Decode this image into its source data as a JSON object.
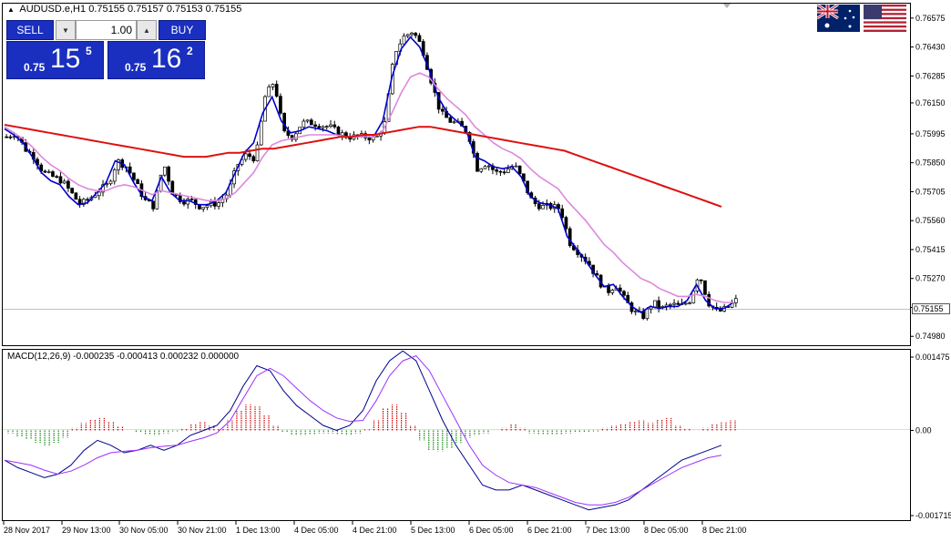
{
  "header": {
    "symbol": "AUDUSD.e,H1",
    "ohlc": "0.75155 0.75157 0.75153 0.75155"
  },
  "trade_panel": {
    "sell_label": "SELL",
    "buy_label": "BUY",
    "lot_value": "1.00",
    "bid_prefix": "0.75",
    "bid_big": "15",
    "bid_sup": "5",
    "ask_prefix": "0.75",
    "ask_big": "16",
    "ask_sup": "2"
  },
  "flags": [
    "australia-flag",
    "usa-flag"
  ],
  "macd": {
    "label": "MACD(12,26,9) -0.000235 -0.000413 0.000232 0.000000",
    "y_ticks": [
      "0.001475",
      "0.00",
      "-0.001715"
    ]
  },
  "colors": {
    "up_candle": "#000000",
    "ema_fast": "#0000cc",
    "ema_mid": "#dd88dd",
    "ema_slow": "#dd1111",
    "hist_up": "#cc0000",
    "hist_down": "#118811",
    "macd_line": "#00008b",
    "signal_line": "#9b30ff"
  },
  "chart_data": [
    {
      "type": "candlestick",
      "title": "AUDUSD.e,H1",
      "current_price": "0.75155",
      "yticks": [
        "0.76575",
        "0.76430",
        "0.76285",
        "0.76150",
        "0.75995",
        "0.75850",
        "0.75705",
        "0.75560",
        "0.75415",
        "0.75270",
        "0.75125",
        "0.74980"
      ],
      "ylim": [
        0.7494,
        0.7662
      ],
      "xticks": [
        "28 Nov 2017",
        "29 Nov 13:00",
        "30 Nov 05:00",
        "30 Nov 21:00",
        "1 Dec 13:00",
        "4 Dec 05:00",
        "4 Dec 21:00",
        "5 Dec 13:00",
        "6 Dec 05:00",
        "6 Dec 21:00",
        "7 Dec 13:00",
        "8 Dec 05:00",
        "8 Dec 21:00"
      ],
      "close_path": [
        0.7598,
        0.76,
        0.7592,
        0.7588,
        0.758,
        0.7578,
        0.7576,
        0.757,
        0.7564,
        0.7567,
        0.7571,
        0.7574,
        0.7586,
        0.7583,
        0.7575,
        0.7566,
        0.7563,
        0.7585,
        0.757,
        0.7566,
        0.7566,
        0.7563,
        0.7564,
        0.7565,
        0.757,
        0.7584,
        0.7589,
        0.7587,
        0.7618,
        0.7626,
        0.76,
        0.7598,
        0.7605,
        0.7605,
        0.7604,
        0.7603,
        0.76,
        0.7598,
        0.7598,
        0.7598,
        0.7597,
        0.7605,
        0.764,
        0.7648,
        0.7651,
        0.7643,
        0.7626,
        0.761,
        0.7606,
        0.7604,
        0.76,
        0.7582,
        0.7585,
        0.758,
        0.7581,
        0.7584,
        0.7575,
        0.7565,
        0.7563,
        0.7563,
        0.7562,
        0.7545,
        0.754,
        0.7535,
        0.7527,
        0.752,
        0.7524,
        0.7516,
        0.751,
        0.7508,
        0.7515,
        0.7512,
        0.7514,
        0.7513,
        0.7516,
        0.753,
        0.7515,
        0.751,
        0.7512,
        0.7516
      ],
      "series": [
        {
          "name": "",
          "color": "#0000cc",
          "values": [
            0.7602,
            0.7599,
            0.7595,
            0.7588,
            0.758,
            0.7576,
            0.7574,
            0.7568,
            0.7564,
            0.7565,
            0.757,
            0.7575,
            0.7586,
            0.7584,
            0.7575,
            0.7568,
            0.7566,
            0.7578,
            0.757,
            0.7566,
            0.7566,
            0.7564,
            0.7564,
            0.7566,
            0.757,
            0.758,
            0.759,
            0.7595,
            0.761,
            0.7618,
            0.7606,
            0.76,
            0.7601,
            0.7603,
            0.7602,
            0.7601,
            0.7599,
            0.7598,
            0.7598,
            0.7598,
            0.7598,
            0.7606,
            0.7628,
            0.7642,
            0.7648,
            0.7643,
            0.7632,
            0.7618,
            0.761,
            0.7606,
            0.7602,
            0.7588,
            0.7586,
            0.7583,
            0.7582,
            0.7583,
            0.7578,
            0.7568,
            0.7565,
            0.7564,
            0.7562,
            0.7548,
            0.7542,
            0.7536,
            0.7529,
            0.7523,
            0.7524,
            0.7518,
            0.7513,
            0.751,
            0.7513,
            0.7512,
            0.7513,
            0.7513,
            0.7516,
            0.7524,
            0.7516,
            0.7512,
            0.7512,
            0.7515
          ]
        },
        {
          "name": "",
          "color": "#dd88dd",
          "values": [
            0.7603,
            0.76,
            0.7597,
            0.7593,
            0.7588,
            0.7584,
            0.7581,
            0.7577,
            0.7574,
            0.7572,
            0.7571,
            0.7571,
            0.7573,
            0.7574,
            0.7573,
            0.7571,
            0.7569,
            0.7571,
            0.757,
            0.7569,
            0.7568,
            0.7567,
            0.7566,
            0.7566,
            0.7567,
            0.757,
            0.7575,
            0.758,
            0.7588,
            0.7594,
            0.7596,
            0.7597,
            0.7598,
            0.7599,
            0.7599,
            0.7599,
            0.7599,
            0.7598,
            0.7598,
            0.7598,
            0.7598,
            0.7601,
            0.761,
            0.762,
            0.7628,
            0.763,
            0.7628,
            0.7622,
            0.7617,
            0.7613,
            0.7609,
            0.7603,
            0.7599,
            0.7595,
            0.7592,
            0.759,
            0.7587,
            0.7582,
            0.7578,
            0.7575,
            0.7572,
            0.7566,
            0.7561,
            0.7556,
            0.755,
            0.7544,
            0.754,
            0.7535,
            0.7531,
            0.7527,
            0.7525,
            0.7522,
            0.752,
            0.7518,
            0.7518,
            0.7519,
            0.7518,
            0.7516,
            0.7515,
            0.7515
          ]
        },
        {
          "name": "",
          "color": "#dd1111",
          "values": [
            0.7604,
            0.7603,
            0.7602,
            0.7601,
            0.76,
            0.7599,
            0.7598,
            0.7597,
            0.7596,
            0.7595,
            0.7594,
            0.7593,
            0.7592,
            0.7591,
            0.759,
            0.7589,
            0.7588,
            0.7588,
            0.7588,
            0.7589,
            0.759,
            0.759,
            0.7591,
            0.7592,
            0.7592,
            0.7593,
            0.7594,
            0.7595,
            0.7596,
            0.7597,
            0.7598,
            0.7598,
            0.7599,
            0.7599,
            0.76,
            0.7601,
            0.7602,
            0.7603,
            0.7603,
            0.7602,
            0.7601,
            0.76,
            0.7599,
            0.7598,
            0.7597,
            0.7596,
            0.7595,
            0.7594,
            0.7593,
            0.7592,
            0.7591,
            0.7589,
            0.7587,
            0.7585,
            0.7583,
            0.7581,
            0.7579,
            0.7577,
            0.7575,
            0.7573,
            0.7571,
            0.7569,
            0.7567,
            0.7565,
            0.7563
          ]
        }
      ]
    },
    {
      "type": "bar",
      "title": "MACD(12,26,9)",
      "values_label": "-0.000235 -0.000413 0.000232 0.000000",
      "ylim": [
        -0.001715,
        0.001475
      ],
      "histogram": [
        -6e-05,
        -0.00012,
        -0.00018,
        -0.00025,
        -0.0003,
        -0.00025,
        -0.00015,
        5e-05,
        0.00015,
        0.00022,
        0.00025,
        0.00018,
        8e-05,
        0.0,
        -5e-05,
        -8e-05,
        -0.0001,
        -6e-05,
        -2e-05,
        4e-05,
        0.00012,
        0.00018,
        0.0001,
        5e-05,
        0.0002,
        0.0004,
        0.00052,
        0.00048,
        0.0003,
        0.0001,
        -4e-05,
        -0.0001,
        -0.0001,
        -8e-05,
        -6e-05,
        -6e-05,
        -8e-05,
        -0.0001,
        -6e-05,
        2e-05,
        0.0002,
        0.00045,
        0.00052,
        0.00035,
        0.0001,
        -0.0002,
        -0.0004,
        -0.00042,
        -0.00035,
        -0.00025,
        -0.00015,
        -0.0001,
        -6e-05,
        0.0,
        5e-05,
        0.00012,
        5e-05,
        -6e-05,
        -8e-05,
        -8e-05,
        -8e-05,
        -6e-05,
        -5e-05,
        -4e-05,
        -2e-05,
        5e-05,
        0.0001,
        0.00014,
        0.00018,
        0.0002,
        0.00015,
        0.00022,
        0.00025,
        0.0001,
        4e-05,
        0.0,
        5e-05,
        0.00012,
        0.00016,
        0.0002
      ],
      "series": [
        {
          "name": "",
          "color": "#00008b",
          "values": [
            -0.0006,
            -0.00075,
            -0.00085,
            -0.00095,
            -0.00088,
            -0.0007,
            -0.0004,
            -0.0002,
            -0.0003,
            -0.00045,
            -0.0004,
            -0.0003,
            -0.0004,
            -0.0003,
            -0.0001,
            0.0,
            0.0001,
            0.0004,
            0.0009,
            0.0013,
            0.0012,
            0.0008,
            0.0005,
            0.0003,
            0.0001,
            0.0,
            0.0001,
            0.0004,
            0.001,
            0.0014,
            0.0016,
            0.0014,
            0.0008,
            0.0002,
            -0.0003,
            -0.0007,
            -0.0011,
            -0.0012,
            -0.0012,
            -0.0011,
            -0.0012,
            -0.0013,
            -0.0014,
            -0.0015,
            -0.0016,
            -0.00155,
            -0.0015,
            -0.0014,
            -0.0012,
            -0.001,
            -0.0008,
            -0.0006,
            -0.0005,
            -0.0004,
            -0.0003
          ]
        },
        {
          "name": "",
          "color": "#9b30ff",
          "values": [
            -0.0006,
            -0.00065,
            -0.0007,
            -0.0008,
            -0.00088,
            -0.00082,
            -0.0007,
            -0.00055,
            -0.00045,
            -0.00042,
            -0.0004,
            -0.00035,
            -0.00032,
            -0.0003,
            -0.00022,
            -0.00015,
            -5e-05,
            0.0002,
            0.00065,
            0.0011,
            0.00125,
            0.0011,
            0.00085,
            0.0006,
            0.0004,
            0.00025,
            0.00018,
            0.0002,
            0.0006,
            0.0011,
            0.0014,
            0.0015,
            0.0012,
            0.0007,
            0.0002,
            -0.0003,
            -0.0007,
            -0.0009,
            -0.00105,
            -0.0011,
            -0.00115,
            -0.00125,
            -0.00135,
            -0.00145,
            -0.0015,
            -0.0015,
            -0.00145,
            -0.00135,
            -0.0012,
            -0.00105,
            -0.0009,
            -0.00075,
            -0.00065,
            -0.00055,
            -0.0005
          ]
        }
      ]
    }
  ]
}
